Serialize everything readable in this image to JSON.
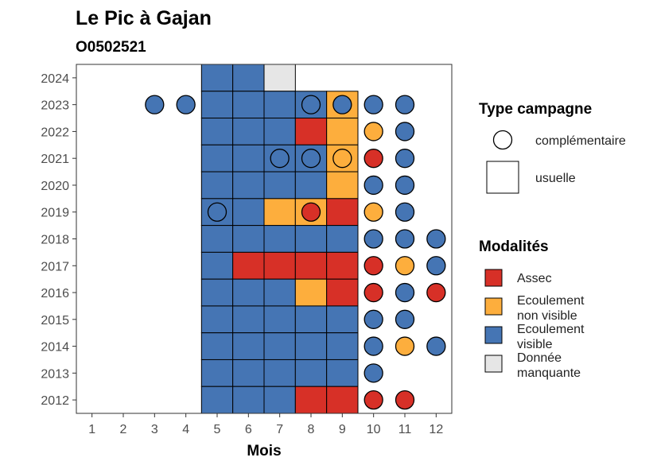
{
  "chart_data": {
    "type": "heatmap",
    "title": "Le Pic à Gajan",
    "subtitle": "O0502521",
    "xlabel": "Mois",
    "ylabel": "",
    "x_ticks": [
      "1",
      "2",
      "3",
      "4",
      "5",
      "6",
      "7",
      "8",
      "9",
      "10",
      "11",
      "12"
    ],
    "y_ticks": [
      "2012",
      "2013",
      "2014",
      "2015",
      "2016",
      "2017",
      "2018",
      "2019",
      "2020",
      "2021",
      "2022",
      "2023",
      "2024"
    ],
    "xlim": [
      0.5,
      12.5
    ],
    "ylim": [
      2011.5,
      2024.5
    ],
    "grid": false,
    "legend_position": "right",
    "colors": {
      "Assec": "#d73027",
      "Ecoulement non visible": "#fdae3d",
      "Ecoulement visible": "#4575b4",
      "Donnée manquante": "#e6e6e6"
    },
    "legend_shape": {
      "title": "Type campagne",
      "entries": [
        {
          "label": "complémentaire",
          "shape": "circle"
        },
        {
          "label": "usuelle",
          "shape": "square"
        }
      ]
    },
    "legend_fill": {
      "title": "Modalités",
      "entries": [
        {
          "key": "Assec",
          "lines": [
            "Assec"
          ]
        },
        {
          "key": "Ecoulement non visible",
          "lines": [
            "Ecoulement",
            "non visible"
          ]
        },
        {
          "key": "Ecoulement visible",
          "lines": [
            "Ecoulement",
            "visible"
          ]
        },
        {
          "key": "Donnée manquante",
          "lines": [
            "Donnée",
            "manquante"
          ]
        }
      ]
    },
    "usuelle": [
      {
        "year": 2024,
        "month": 5,
        "value": "Ecoulement visible"
      },
      {
        "year": 2024,
        "month": 6,
        "value": "Ecoulement visible"
      },
      {
        "year": 2024,
        "month": 7,
        "value": "Donnée manquante"
      },
      {
        "year": 2023,
        "month": 5,
        "value": "Ecoulement visible"
      },
      {
        "year": 2023,
        "month": 6,
        "value": "Ecoulement visible"
      },
      {
        "year": 2023,
        "month": 7,
        "value": "Ecoulement visible"
      },
      {
        "year": 2023,
        "month": 8,
        "value": "Ecoulement visible"
      },
      {
        "year": 2023,
        "month": 9,
        "value": "Ecoulement non visible"
      },
      {
        "year": 2022,
        "month": 5,
        "value": "Ecoulement visible"
      },
      {
        "year": 2022,
        "month": 6,
        "value": "Ecoulement visible"
      },
      {
        "year": 2022,
        "month": 7,
        "value": "Ecoulement visible"
      },
      {
        "year": 2022,
        "month": 8,
        "value": "Assec"
      },
      {
        "year": 2022,
        "month": 9,
        "value": "Ecoulement non visible"
      },
      {
        "year": 2021,
        "month": 5,
        "value": "Ecoulement visible"
      },
      {
        "year": 2021,
        "month": 6,
        "value": "Ecoulement visible"
      },
      {
        "year": 2021,
        "month": 7,
        "value": "Ecoulement visible"
      },
      {
        "year": 2021,
        "month": 8,
        "value": "Ecoulement visible"
      },
      {
        "year": 2021,
        "month": 9,
        "value": "Ecoulement non visible"
      },
      {
        "year": 2020,
        "month": 5,
        "value": "Ecoulement visible"
      },
      {
        "year": 2020,
        "month": 6,
        "value": "Ecoulement visible"
      },
      {
        "year": 2020,
        "month": 7,
        "value": "Ecoulement visible"
      },
      {
        "year": 2020,
        "month": 8,
        "value": "Ecoulement visible"
      },
      {
        "year": 2020,
        "month": 9,
        "value": "Ecoulement non visible"
      },
      {
        "year": 2019,
        "month": 5,
        "value": "Ecoulement visible"
      },
      {
        "year": 2019,
        "month": 6,
        "value": "Ecoulement visible"
      },
      {
        "year": 2019,
        "month": 7,
        "value": "Ecoulement non visible"
      },
      {
        "year": 2019,
        "month": 8,
        "value": "Ecoulement non visible"
      },
      {
        "year": 2019,
        "month": 9,
        "value": "Assec"
      },
      {
        "year": 2018,
        "month": 5,
        "value": "Ecoulement visible"
      },
      {
        "year": 2018,
        "month": 6,
        "value": "Ecoulement visible"
      },
      {
        "year": 2018,
        "month": 7,
        "value": "Ecoulement visible"
      },
      {
        "year": 2018,
        "month": 8,
        "value": "Ecoulement visible"
      },
      {
        "year": 2018,
        "month": 9,
        "value": "Ecoulement visible"
      },
      {
        "year": 2017,
        "month": 5,
        "value": "Ecoulement visible"
      },
      {
        "year": 2017,
        "month": 6,
        "value": "Assec"
      },
      {
        "year": 2017,
        "month": 7,
        "value": "Assec"
      },
      {
        "year": 2017,
        "month": 8,
        "value": "Assec"
      },
      {
        "year": 2017,
        "month": 9,
        "value": "Assec"
      },
      {
        "year": 2016,
        "month": 5,
        "value": "Ecoulement visible"
      },
      {
        "year": 2016,
        "month": 6,
        "value": "Ecoulement visible"
      },
      {
        "year": 2016,
        "month": 7,
        "value": "Ecoulement visible"
      },
      {
        "year": 2016,
        "month": 8,
        "value": "Ecoulement non visible"
      },
      {
        "year": 2016,
        "month": 9,
        "value": "Assec"
      },
      {
        "year": 2015,
        "month": 5,
        "value": "Ecoulement visible"
      },
      {
        "year": 2015,
        "month": 6,
        "value": "Ecoulement visible"
      },
      {
        "year": 2015,
        "month": 7,
        "value": "Ecoulement visible"
      },
      {
        "year": 2015,
        "month": 8,
        "value": "Ecoulement visible"
      },
      {
        "year": 2015,
        "month": 9,
        "value": "Ecoulement visible"
      },
      {
        "year": 2014,
        "month": 5,
        "value": "Ecoulement visible"
      },
      {
        "year": 2014,
        "month": 6,
        "value": "Ecoulement visible"
      },
      {
        "year": 2014,
        "month": 7,
        "value": "Ecoulement visible"
      },
      {
        "year": 2014,
        "month": 8,
        "value": "Ecoulement visible"
      },
      {
        "year": 2014,
        "month": 9,
        "value": "Ecoulement visible"
      },
      {
        "year": 2013,
        "month": 5,
        "value": "Ecoulement visible"
      },
      {
        "year": 2013,
        "month": 6,
        "value": "Ecoulement visible"
      },
      {
        "year": 2013,
        "month": 7,
        "value": "Ecoulement visible"
      },
      {
        "year": 2013,
        "month": 8,
        "value": "Ecoulement visible"
      },
      {
        "year": 2013,
        "month": 9,
        "value": "Ecoulement visible"
      },
      {
        "year": 2012,
        "month": 5,
        "value": "Ecoulement visible"
      },
      {
        "year": 2012,
        "month": 6,
        "value": "Ecoulement visible"
      },
      {
        "year": 2012,
        "month": 7,
        "value": "Ecoulement visible"
      },
      {
        "year": 2012,
        "month": 8,
        "value": "Assec"
      },
      {
        "year": 2012,
        "month": 9,
        "value": "Assec"
      }
    ],
    "complementaire": [
      {
        "year": 2023,
        "month": 3,
        "value": "Ecoulement visible"
      },
      {
        "year": 2023,
        "month": 4,
        "value": "Ecoulement visible"
      },
      {
        "year": 2023,
        "month": 8,
        "value": "Ecoulement visible"
      },
      {
        "year": 2023,
        "month": 9,
        "value": "Ecoulement visible"
      },
      {
        "year": 2023,
        "month": 10,
        "value": "Ecoulement visible"
      },
      {
        "year": 2023,
        "month": 11,
        "value": "Ecoulement visible"
      },
      {
        "year": 2022,
        "month": 10,
        "value": "Ecoulement non visible"
      },
      {
        "year": 2022,
        "month": 11,
        "value": "Ecoulement visible"
      },
      {
        "year": 2021,
        "month": 7,
        "value": "Ecoulement visible"
      },
      {
        "year": 2021,
        "month": 8,
        "value": "Ecoulement visible"
      },
      {
        "year": 2021,
        "month": 9,
        "value": "Ecoulement non visible"
      },
      {
        "year": 2021,
        "month": 10,
        "value": "Assec"
      },
      {
        "year": 2021,
        "month": 11,
        "value": "Ecoulement visible"
      },
      {
        "year": 2020,
        "month": 10,
        "value": "Ecoulement visible"
      },
      {
        "year": 2020,
        "month": 11,
        "value": "Ecoulement visible"
      },
      {
        "year": 2019,
        "month": 5,
        "value": "Ecoulement visible"
      },
      {
        "year": 2019,
        "month": 8,
        "value": "Assec"
      },
      {
        "year": 2019,
        "month": 10,
        "value": "Ecoulement non visible"
      },
      {
        "year": 2019,
        "month": 11,
        "value": "Ecoulement visible"
      },
      {
        "year": 2018,
        "month": 10,
        "value": "Ecoulement visible"
      },
      {
        "year": 2018,
        "month": 11,
        "value": "Ecoulement visible"
      },
      {
        "year": 2018,
        "month": 12,
        "value": "Ecoulement visible"
      },
      {
        "year": 2017,
        "month": 10,
        "value": "Assec"
      },
      {
        "year": 2017,
        "month": 11,
        "value": "Ecoulement non visible"
      },
      {
        "year": 2017,
        "month": 12,
        "value": "Ecoulement visible"
      },
      {
        "year": 2016,
        "month": 10,
        "value": "Assec"
      },
      {
        "year": 2016,
        "month": 11,
        "value": "Ecoulement visible"
      },
      {
        "year": 2016,
        "month": 12,
        "value": "Assec"
      },
      {
        "year": 2015,
        "month": 10,
        "value": "Ecoulement visible"
      },
      {
        "year": 2015,
        "month": 11,
        "value": "Ecoulement visible"
      },
      {
        "year": 2014,
        "month": 10,
        "value": "Ecoulement visible"
      },
      {
        "year": 2014,
        "month": 11,
        "value": "Ecoulement non visible"
      },
      {
        "year": 2014,
        "month": 12,
        "value": "Ecoulement visible"
      },
      {
        "year": 2013,
        "month": 10,
        "value": "Ecoulement visible"
      },
      {
        "year": 2012,
        "month": 10,
        "value": "Assec"
      },
      {
        "year": 2012,
        "month": 11,
        "value": "Assec"
      }
    ]
  }
}
